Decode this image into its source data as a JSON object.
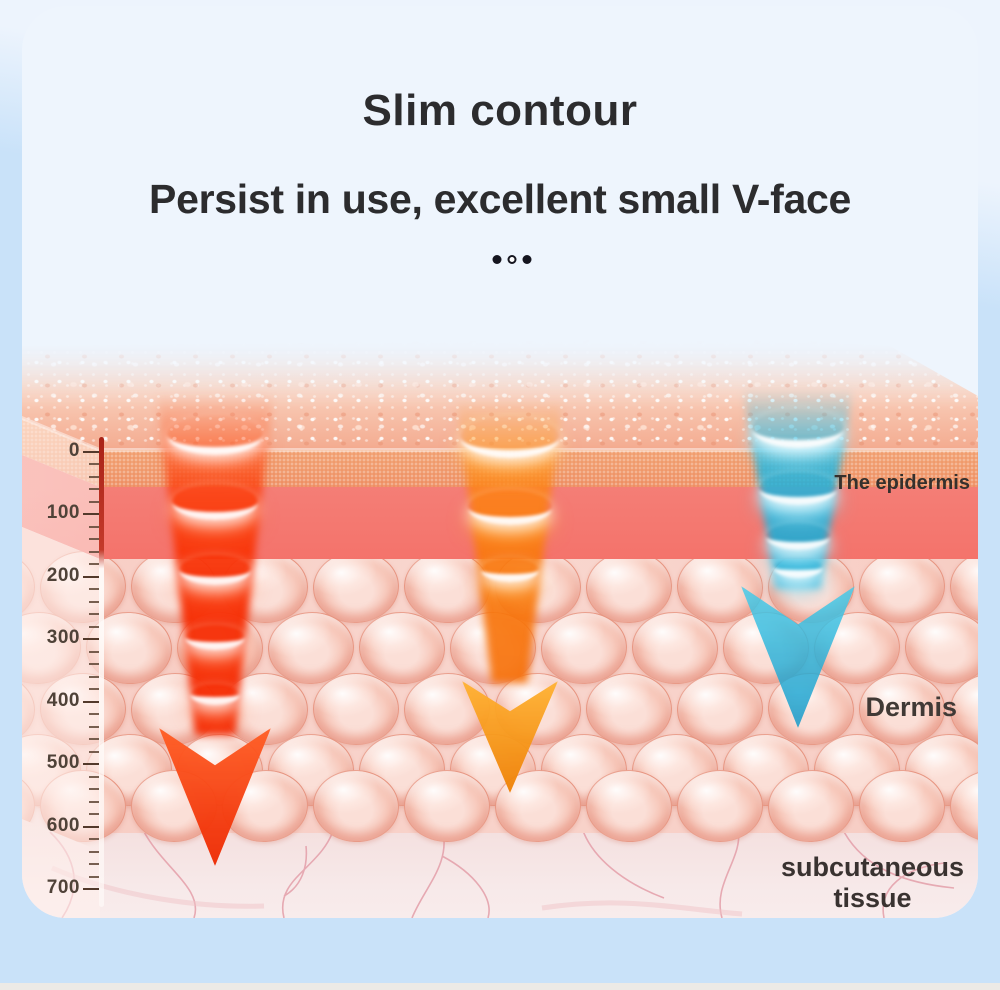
{
  "header": {
    "title": "Slim contour",
    "subtitle": "Persist in use, excellent small V-face",
    "pagination_dots": [
      "filled",
      "hollow",
      "filled"
    ]
  },
  "diagram": {
    "depth_ruler": {
      "tick_labels": [
        "0",
        "100",
        "200",
        "300",
        "400",
        "500",
        "600",
        "700"
      ]
    },
    "layer_labels": {
      "epidermis": "The epidermis",
      "dermis": "Dermis",
      "subcutaneous": "subcutaneous\ntissue"
    },
    "beams": [
      {
        "name": "red-beam",
        "color": "#f43b10"
      },
      {
        "name": "orange-beam",
        "color": "#f79a18"
      },
      {
        "name": "blue-beam",
        "color": "#25b4d8"
      }
    ]
  },
  "colors": {
    "page_background": "#c9e2f9",
    "card_background": "#eef5fd",
    "epidermis_top_band": "#f09a6b",
    "epidermis_band": "#f4736b",
    "dermis_background": "#f7cdc4",
    "subcutaneous_background": "#f7e9e9",
    "title_text": "#2c2c2e",
    "ruler_line": "#c43a2a"
  }
}
